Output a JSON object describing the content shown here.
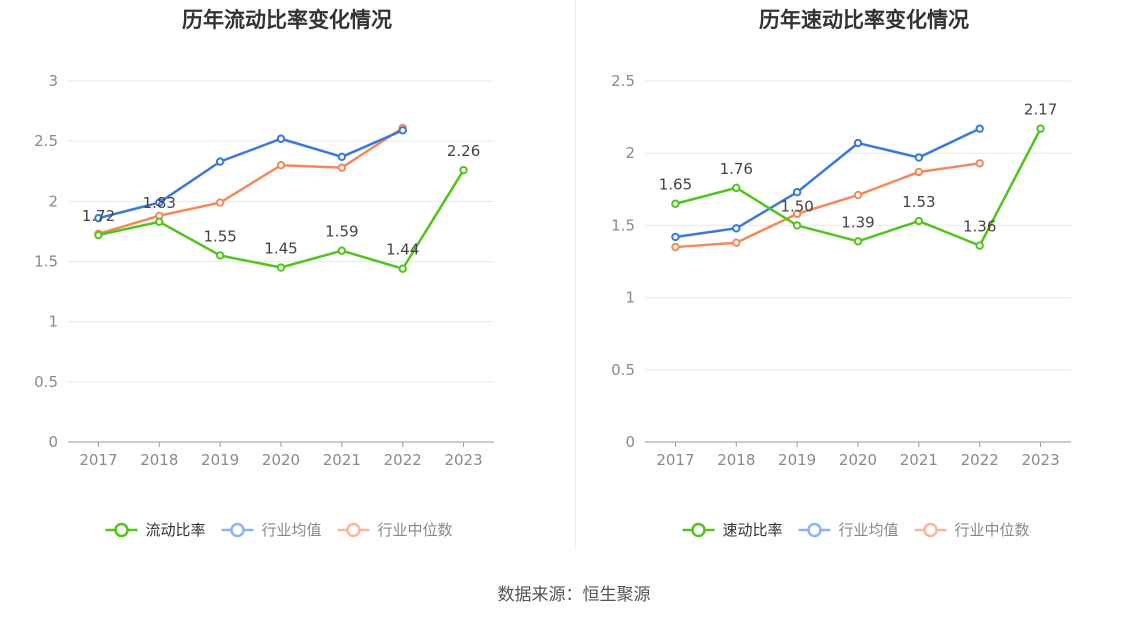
{
  "chart_data": [
    {
      "type": "line",
      "title": "历年流动比率变化情况",
      "categories": [
        "2017",
        "2018",
        "2019",
        "2020",
        "2021",
        "2022",
        "2023"
      ],
      "ylim": [
        0,
        3
      ],
      "yticks": [
        0,
        0.5,
        1,
        1.5,
        2,
        2.5,
        3
      ],
      "grid": true,
      "legend_position": "bottom",
      "series": [
        {
          "name": "流动比率",
          "color": "#52c41a",
          "values": [
            1.72,
            1.83,
            1.55,
            1.45,
            1.59,
            1.44,
            2.26
          ],
          "labels": [
            "1.72",
            "1.83",
            "1.55",
            "1.45",
            "1.59",
            "1.44",
            "2.26"
          ]
        },
        {
          "name": "行业均值",
          "color": "#3a78e0",
          "values": [
            1.86,
            1.99,
            2.33,
            2.52,
            2.37,
            2.59,
            null
          ]
        },
        {
          "name": "行业中位数",
          "color": "#f5885a",
          "values": [
            1.73,
            1.88,
            1.99,
            2.3,
            2.28,
            2.61,
            null
          ]
        }
      ]
    },
    {
      "type": "line",
      "title": "历年速动比率变化情况",
      "categories": [
        "2017",
        "2018",
        "2019",
        "2020",
        "2021",
        "2022",
        "2023"
      ],
      "ylim": [
        0,
        2.5
      ],
      "yticks": [
        0,
        0.5,
        1,
        1.5,
        2,
        2.5
      ],
      "grid": true,
      "legend_position": "bottom",
      "series": [
        {
          "name": "速动比率",
          "color": "#52c41a",
          "values": [
            1.65,
            1.76,
            1.5,
            1.39,
            1.53,
            1.36,
            2.17
          ],
          "labels": [
            "1.65",
            "1.76",
            "1.50",
            "1.39",
            "1.53",
            "1.36",
            "2.17"
          ]
        },
        {
          "name": "行业均值",
          "color": "#3a78e0",
          "values": [
            1.42,
            1.48,
            1.73,
            2.07,
            1.97,
            2.17,
            null
          ]
        },
        {
          "name": "行业中位数",
          "color": "#f5885a",
          "values": [
            1.35,
            1.38,
            1.58,
            1.71,
            1.87,
            1.93,
            null
          ]
        }
      ]
    }
  ],
  "source": "数据来源：恒生聚源"
}
